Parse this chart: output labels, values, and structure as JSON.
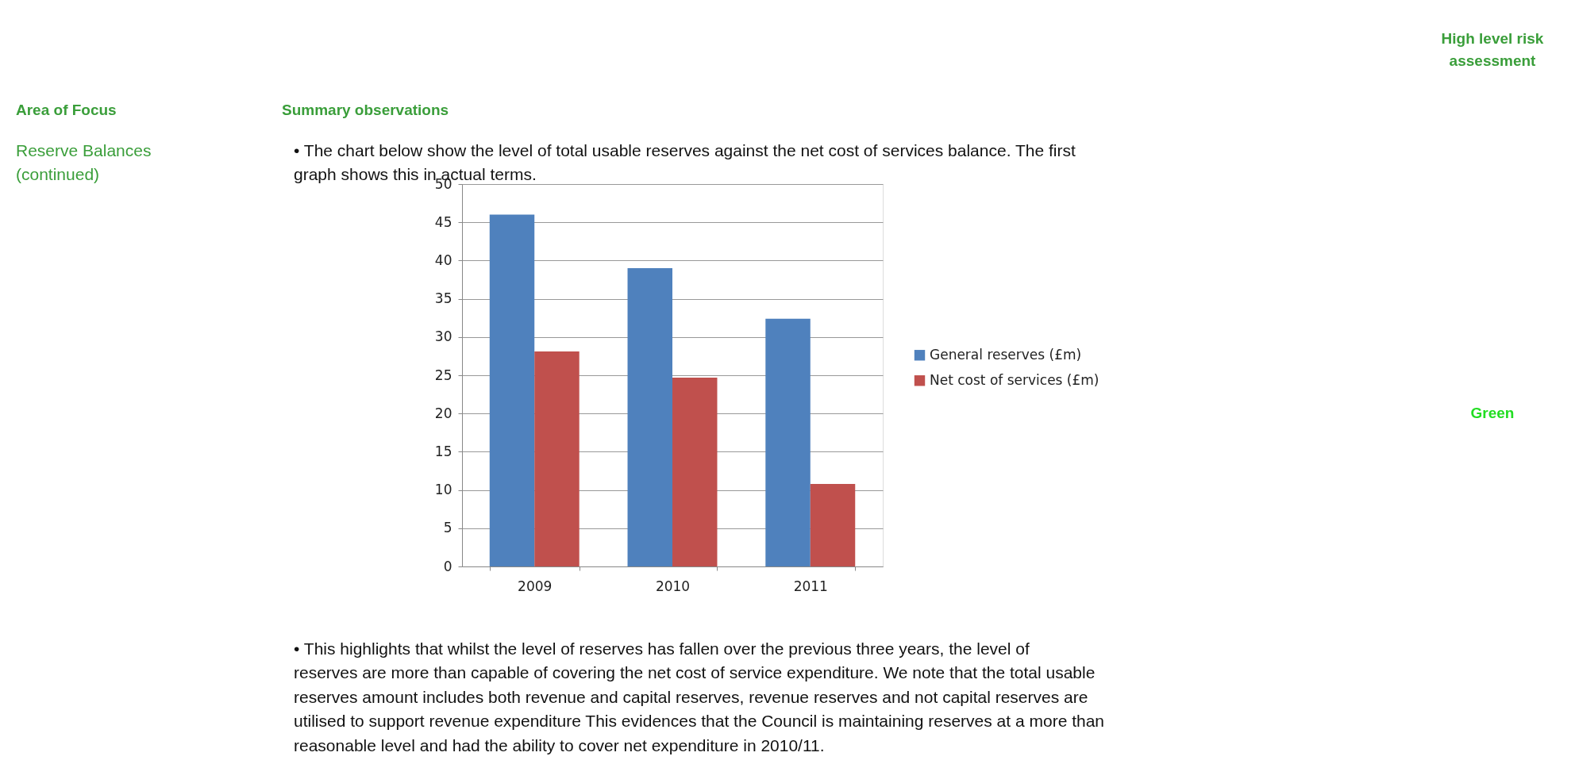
{
  "chart_data": {
    "type": "bar",
    "categories": [
      "2009",
      "2010",
      "2011"
    ],
    "series": [
      {
        "name": "General reserves (£m)",
        "color": "#4f81bd",
        "values": [
          46,
          39,
          32.4
        ]
      },
      {
        "name": "Net cost of services (£m)",
        "color": "#c0504d",
        "values": [
          28.1,
          24.7,
          10.8
        ]
      }
    ],
    "ylim": [
      0,
      50
    ],
    "yticks": [
      0,
      5,
      10,
      15,
      20,
      25,
      30,
      35,
      40,
      45,
      50
    ],
    "grid": "y",
    "legend": "right",
    "annotations": [
      "Area of Focus",
      "Summary observations",
      "High level risk assessment",
      "Reserve Balances (continued)",
      "• The chart below show the level of total usable reserves against the net cost of services balance. The first graph shows this in actual terms.",
      "• This highlights that whilst the level of reserves has fallen over the previous three years, the level of reserves are more than capable of covering the net cost of service expenditure. We note that the total usable reserves amount includes both revenue and capital reserves, revenue reserves and not capital reserves are utilised to support revenue expenditure This evidences that the Council is maintaining reserves at a more than reasonable level and had the ability to cover net expenditure in 2010/11.",
      "Green"
    ]
  }
}
